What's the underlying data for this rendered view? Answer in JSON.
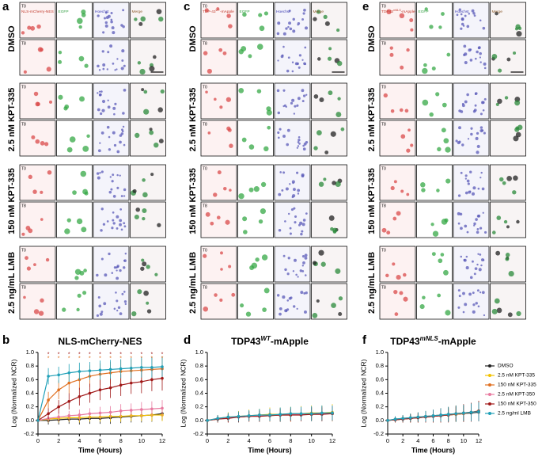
{
  "figure": {
    "conditions": [
      "DMSO",
      "2.5 nM KPT-335",
      "150 nM KPT-335",
      "2.5 ng/mL LMB"
    ],
    "timepoints": [
      "T0",
      "T8"
    ],
    "panels": [
      {
        "letter": "a",
        "channels": [
          [
            "NLS-mCherry-NES"
          ],
          [
            "EGFP"
          ],
          [
            "Hoechst"
          ],
          [
            "Merge"
          ]
        ]
      },
      {
        "letter": "c",
        "channels": [
          [
            "TDP-43",
            "WT",
            "-mApple"
          ],
          [
            "EGFP"
          ],
          [
            "Hoechst"
          ],
          [
            "Merge"
          ]
        ]
      },
      {
        "letter": "e",
        "channels": [
          [
            "TDP43",
            "mNLS",
            "-mApple"
          ],
          [
            "EGFP"
          ],
          [
            "Hoechst"
          ],
          [
            "Merge"
          ]
        ]
      }
    ]
  },
  "chart_data": [
    {
      "type": "line",
      "letter": "b",
      "title": [
        "NLS-mCherry-NES"
      ],
      "xlabel": "Time (Hours)",
      "ylabel": "Log (Normalized NCR)",
      "x": [
        0,
        1,
        2,
        3,
        4,
        5,
        6,
        7,
        8,
        9,
        10,
        11,
        12
      ],
      "xlim": [
        0,
        12
      ],
      "xticks": [
        0,
        2,
        4,
        6,
        8,
        10,
        12
      ],
      "ylim": [
        -0.2,
        1.0
      ],
      "yticks": [
        -0.2,
        {
          "value": 0,
          "label": "0.0"
        },
        0.2,
        0.4,
        0.6,
        0.8,
        {
          "value": 1,
          "label": "1.0"
        }
      ],
      "legend": false,
      "significance": {
        "text": "*",
        "x": [
          1,
          2,
          3,
          4,
          5,
          6,
          7,
          8,
          9,
          10,
          11,
          12
        ],
        "rows": [
          {
            "color": "#a01818",
            "y": 0.97
          },
          {
            "color": "#e07020",
            "y": 0.91
          }
        ]
      },
      "series": [
        {
          "name": "DMSO",
          "color": "#222222",
          "values": [
            0,
            0,
            0.01,
            0.02,
            0.02,
            0.03,
            0.03,
            0.04,
            0.05,
            0.06,
            0.07,
            0.08,
            0.1
          ],
          "errors": [
            0,
            0.06,
            0.07,
            0.07,
            0.08,
            0.08,
            0.08,
            0.09,
            0.09,
            0.09,
            0.1,
            0.1,
            0.1
          ]
        },
        {
          "name": "2.5 nM KPT-335",
          "color": "#f2c200",
          "values": [
            0,
            0.02,
            0.03,
            0.04,
            0.04,
            0.05,
            0.05,
            0.06,
            0.06,
            0.07,
            0.07,
            0.08,
            0.08
          ],
          "errors": [
            0,
            0.05,
            0.06,
            0.06,
            0.07,
            0.07,
            0.07,
            0.08,
            0.08,
            0.08,
            0.08,
            0.09,
            0.09
          ]
        },
        {
          "name": "150 nM KPT-335",
          "color": "#e07020",
          "values": [
            0,
            0.3,
            0.45,
            0.55,
            0.6,
            0.65,
            0.68,
            0.7,
            0.72,
            0.73,
            0.74,
            0.75,
            0.76
          ],
          "errors": [
            0,
            0.12,
            0.14,
            0.15,
            0.15,
            0.16,
            0.16,
            0.16,
            0.17,
            0.17,
            0.17,
            0.18,
            0.18
          ]
        },
        {
          "name": "2.5 nM KPT-350",
          "color": "#e87aa0",
          "values": [
            0,
            0.03,
            0.05,
            0.07,
            0.08,
            0.1,
            0.11,
            0.12,
            0.14,
            0.15,
            0.16,
            0.17,
            0.18
          ],
          "errors": [
            0,
            0.05,
            0.06,
            0.07,
            0.08,
            0.08,
            0.09,
            0.09,
            0.1,
            0.1,
            0.11,
            0.11,
            0.12
          ]
        },
        {
          "name": "150 nM KPT-350",
          "color": "#a01818",
          "values": [
            0,
            0.1,
            0.2,
            0.28,
            0.35,
            0.4,
            0.45,
            0.48,
            0.52,
            0.55,
            0.57,
            0.6,
            0.62
          ],
          "errors": [
            0,
            0.08,
            0.1,
            0.12,
            0.13,
            0.14,
            0.15,
            0.15,
            0.16,
            0.16,
            0.17,
            0.17,
            0.18
          ]
        },
        {
          "name": "2.5 ng/ml LMB",
          "color": "#20a0b8",
          "values": [
            0,
            0.65,
            0.67,
            0.7,
            0.72,
            0.73,
            0.74,
            0.75,
            0.76,
            0.77,
            0.78,
            0.78,
            0.79
          ],
          "errors": [
            0,
            0.12,
            0.12,
            0.13,
            0.13,
            0.13,
            0.14,
            0.14,
            0.14,
            0.15,
            0.15,
            0.15,
            0.15
          ]
        }
      ]
    },
    {
      "type": "line",
      "letter": "d",
      "title": [
        "TDP43",
        "WT",
        "-mApple"
      ],
      "xlabel": "Time (Hours)",
      "ylabel": "Log (Normalized NCR)",
      "x": [
        0,
        1,
        2,
        3,
        4,
        5,
        6,
        7,
        8,
        9,
        10,
        11,
        12
      ],
      "xlim": [
        0,
        12
      ],
      "xticks": [
        0,
        2,
        4,
        6,
        8,
        10,
        12
      ],
      "ylim": [
        -0.2,
        1.0
      ],
      "yticks": [
        -0.2,
        {
          "value": 0,
          "label": "0.0"
        },
        0.2,
        0.4,
        0.6,
        0.8,
        {
          "value": 1,
          "label": "1.0"
        }
      ],
      "legend": false,
      "series": [
        {
          "name": "DMSO",
          "color": "#222222",
          "values": [
            0,
            0.02,
            0.04,
            0.05,
            0.06,
            0.07,
            0.08,
            0.08,
            0.09,
            0.09,
            0.1,
            0.1,
            0.1
          ],
          "errors": [
            0,
            0.05,
            0.07,
            0.08,
            0.08,
            0.09,
            0.09,
            0.1,
            0.1,
            0.1,
            0.1,
            0.11,
            0.11
          ]
        },
        {
          "name": "2.5 nM KPT-335",
          "color": "#f2c200",
          "values": [
            0,
            0.03,
            0.05,
            0.06,
            0.07,
            0.08,
            0.09,
            0.09,
            0.1,
            0.1,
            0.11,
            0.11,
            0.12
          ],
          "errors": [
            0,
            0.05,
            0.07,
            0.08,
            0.09,
            0.09,
            0.1,
            0.1,
            0.1,
            0.11,
            0.11,
            0.11,
            0.12
          ]
        },
        {
          "name": "150 nM KPT-335",
          "color": "#e07020",
          "values": [
            0,
            0.02,
            0.04,
            0.05,
            0.06,
            0.07,
            0.07,
            0.08,
            0.08,
            0.09,
            0.09,
            0.1,
            0.1
          ],
          "errors": [
            0,
            0.05,
            0.06,
            0.07,
            0.08,
            0.08,
            0.09,
            0.09,
            0.1,
            0.1,
            0.1,
            0.1,
            0.11
          ]
        },
        {
          "name": "2.5 nM KPT-350",
          "color": "#e87aa0",
          "values": [
            0,
            0.03,
            0.04,
            0.05,
            0.06,
            0.07,
            0.08,
            0.08,
            0.09,
            0.09,
            0.1,
            0.1,
            0.11
          ],
          "errors": [
            0,
            0.05,
            0.06,
            0.07,
            0.08,
            0.08,
            0.09,
            0.09,
            0.09,
            0.1,
            0.1,
            0.1,
            0.11
          ]
        },
        {
          "name": "150 nM KPT-350",
          "color": "#a01818",
          "values": [
            0,
            0.02,
            0.03,
            0.05,
            0.06,
            0.06,
            0.07,
            0.08,
            0.08,
            0.08,
            0.09,
            0.09,
            0.1
          ],
          "errors": [
            0,
            0.05,
            0.06,
            0.07,
            0.07,
            0.08,
            0.08,
            0.09,
            0.09,
            0.09,
            0.1,
            0.1,
            0.1
          ]
        },
        {
          "name": "2.5 ng/ml LMB",
          "color": "#20a0b8",
          "values": [
            0,
            0.03,
            0.05,
            0.06,
            0.07,
            0.08,
            0.08,
            0.09,
            0.1,
            0.1,
            0.1,
            0.11,
            0.11
          ],
          "errors": [
            0,
            0.05,
            0.06,
            0.07,
            0.08,
            0.09,
            0.09,
            0.1,
            0.1,
            0.1,
            0.11,
            0.11,
            0.11
          ]
        }
      ]
    },
    {
      "type": "line",
      "letter": "f",
      "title": [
        "TDP43",
        "mNLS",
        "-mApple"
      ],
      "xlabel": "Time (Hours)",
      "ylabel": "Log (Normalized NCR)",
      "x": [
        0,
        1,
        2,
        3,
        4,
        5,
        6,
        7,
        8,
        9,
        10,
        11,
        12
      ],
      "xlim": [
        0,
        12
      ],
      "xticks": [
        0,
        2,
        4,
        6,
        8,
        10,
        12
      ],
      "ylim": [
        -0.2,
        1.0
      ],
      "yticks": [
        -0.2,
        {
          "value": 0,
          "label": "0.0"
        },
        0.2,
        0.4,
        0.6,
        0.8,
        {
          "value": 1,
          "label": "1.0"
        }
      ],
      "legend": "right",
      "series": [
        {
          "name": "DMSO",
          "color": "#222222",
          "values": [
            0,
            0.01,
            0.02,
            0.03,
            0.04,
            0.05,
            0.06,
            0.07,
            0.08,
            0.09,
            0.1,
            0.11,
            0.12
          ],
          "errors": [
            0,
            0.04,
            0.05,
            0.06,
            0.07,
            0.08,
            0.09,
            0.1,
            0.1,
            0.11,
            0.12,
            0.12,
            0.13
          ]
        },
        {
          "name": "2.5 nM KPT-335",
          "color": "#f2c200",
          "values": [
            0,
            0.02,
            0.03,
            0.04,
            0.05,
            0.06,
            0.07,
            0.08,
            0.09,
            0.1,
            0.11,
            0.12,
            0.14
          ],
          "errors": [
            0,
            0.04,
            0.05,
            0.06,
            0.07,
            0.08,
            0.09,
            0.1,
            0.11,
            0.12,
            0.12,
            0.13,
            0.14
          ]
        },
        {
          "name": "150 nM KPT-335",
          "color": "#e07020",
          "values": [
            0,
            0.01,
            0.02,
            0.03,
            0.04,
            0.05,
            0.06,
            0.07,
            0.08,
            0.09,
            0.1,
            0.12,
            0.13
          ],
          "errors": [
            0,
            0.04,
            0.05,
            0.06,
            0.07,
            0.08,
            0.09,
            0.1,
            0.1,
            0.11,
            0.12,
            0.13,
            0.14
          ]
        },
        {
          "name": "2.5 nM KPT-350",
          "color": "#e87aa0",
          "values": [
            0,
            0.02,
            0.03,
            0.04,
            0.05,
            0.06,
            0.07,
            0.08,
            0.09,
            0.1,
            0.11,
            0.12,
            0.13
          ],
          "errors": [
            0,
            0.04,
            0.05,
            0.06,
            0.07,
            0.08,
            0.09,
            0.1,
            0.11,
            0.11,
            0.12,
            0.13,
            0.14
          ]
        },
        {
          "name": "150 nM KPT-350",
          "color": "#a01818",
          "values": [
            0,
            0.01,
            0.02,
            0.03,
            0.04,
            0.05,
            0.06,
            0.07,
            0.08,
            0.1,
            0.11,
            0.12,
            0.14
          ],
          "errors": [
            0,
            0.04,
            0.05,
            0.06,
            0.07,
            0.08,
            0.09,
            0.1,
            0.11,
            0.12,
            0.13,
            0.14,
            0.15
          ]
        },
        {
          "name": "2.5 ng/ml LMB",
          "color": "#20a0b8",
          "values": [
            0,
            0.02,
            0.03,
            0.04,
            0.05,
            0.06,
            0.07,
            0.08,
            0.09,
            0.1,
            0.11,
            0.12,
            0.13
          ],
          "errors": [
            0,
            0.04,
            0.05,
            0.06,
            0.07,
            0.08,
            0.09,
            0.1,
            0.11,
            0.12,
            0.12,
            0.13,
            0.14
          ]
        }
      ]
    }
  ]
}
